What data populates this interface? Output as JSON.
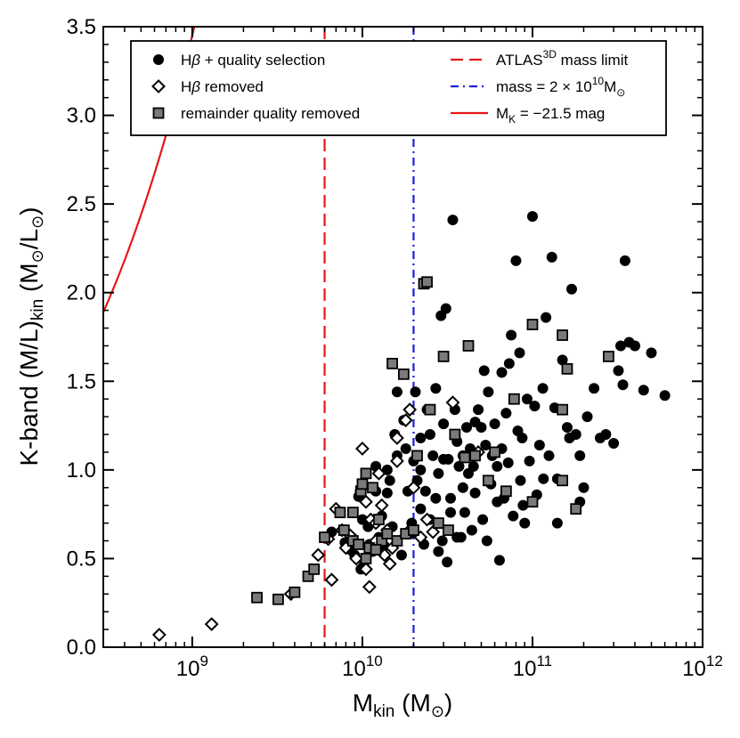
{
  "chart_data": {
    "type": "scatter",
    "xlabel": {
      "main": "M",
      "sub": "kin",
      "rest": " (M",
      "sun": "⊙",
      "close": ")"
    },
    "ylabel": {
      "main": "K-band (M/L)",
      "sub": "kin",
      "rest": " (M",
      "sun1": "⊙",
      "slash": "/L",
      "sun2": "⊙",
      "close": ")"
    },
    "x_scale": "log",
    "xlim": [
      300000000,
      1000000000000
    ],
    "ylim": [
      0.0,
      3.5
    ],
    "x_ticks": [
      {
        "value": 1000000000,
        "base": "10",
        "exp": "9"
      },
      {
        "value": 10000000000,
        "base": "10",
        "exp": "10"
      },
      {
        "value": 100000000000,
        "base": "10",
        "exp": "11"
      },
      {
        "value": 1000000000000,
        "base": "10",
        "exp": "12"
      }
    ],
    "y_ticks": [
      "0.0",
      "0.5",
      "1.0",
      "1.5",
      "2.0",
      "2.5",
      "3.0",
      "3.5"
    ],
    "grid": false,
    "legend": {
      "position": "top",
      "markers": [
        {
          "pre": "H",
          "greek": "β",
          "post": " + quality selection",
          "marker": "filled-circle"
        },
        {
          "pre": "H",
          "greek": "β",
          "post": " removed",
          "marker": "open-diamond"
        },
        {
          "pre": "remainder quality removed",
          "greek": "",
          "post": "",
          "marker": "gray-square"
        }
      ],
      "lines": [
        {
          "pre": "ATLAS",
          "sup": "3D",
          "post": " mass limit",
          "style": "red-dashed"
        },
        {
          "pre": "mass = 2 × 10",
          "sup": "10",
          "post": "M",
          "sun": "⊙",
          "style": "blue-dashdot"
        },
        {
          "pre": "M",
          "sub": "K",
          "post": " = −21.5 mag",
          "style": "red-solid"
        }
      ]
    },
    "reference_lines": [
      {
        "orientation": "vertical",
        "x": 6000000000,
        "color": "#e8161a",
        "dash": "dashed"
      },
      {
        "orientation": "vertical",
        "x": 20000000000,
        "color": "#1d1ddc",
        "dash": "dashdot"
      }
    ],
    "curve": {
      "name": "M_K = -21.5 mag",
      "relation": "y = 0.0001091 * x^0.5",
      "x_from": 300000000,
      "x_to": 31600000000,
      "color": "#e8161a"
    },
    "series": [
      {
        "name": "Hβ + quality selection",
        "marker": "filled-circle",
        "color": "#000000",
        "points": [
          [
            6600000000.0,
            0.65
          ],
          [
            7900000000.0,
            0.59
          ],
          [
            8500000000.0,
            0.55
          ],
          [
            9000000000.0,
            0.52
          ],
          [
            9500000000.0,
            0.85
          ],
          [
            9700000000.0,
            0.88
          ],
          [
            9800000000.0,
            0.44
          ],
          [
            10000000000.0,
            0.72
          ],
          [
            10200000000.0,
            0.46
          ],
          [
            10800000000.0,
            0.68
          ],
          [
            11000000000.0,
            0.58
          ],
          [
            11500000000.0,
            0.54
          ],
          [
            12000000000.0,
            0.88
          ],
          [
            12500000000.0,
            0.62
          ],
          [
            13000000000.0,
            0.74
          ],
          [
            13500000000.0,
            0.57
          ],
          [
            14000000000.0,
            0.87
          ],
          [
            14500000000.0,
            0.94
          ],
          [
            15000000000.0,
            0.68
          ],
          [
            15500000000.0,
            1.2
          ],
          [
            16000000000.0,
            1.44
          ],
          [
            17000000000.0,
            0.52
          ],
          [
            17500000000.0,
            1.28
          ],
          [
            18000000000.0,
            1.12
          ],
          [
            18500000000.0,
            0.88
          ],
          [
            19000000000.0,
            0.64
          ],
          [
            19500000000.0,
            0.7
          ],
          [
            20000000000.0,
            1.05
          ],
          [
            20500000000.0,
            1.44
          ],
          [
            21000000000.0,
            0.94
          ],
          [
            22000000000.0,
            1.18
          ],
          [
            23000000000.0,
            0.58
          ],
          [
            23500000000.0,
            0.88
          ],
          [
            24000000000.0,
            1.34
          ],
          [
            25000000000.0,
            0.72
          ],
          [
            26000000000.0,
            1.08
          ],
          [
            27000000000.0,
            1.46
          ],
          [
            28000000000.0,
            0.98
          ],
          [
            29000000000.0,
            1.87
          ],
          [
            29500000000.0,
            0.6
          ],
          [
            30000000000.0,
            1.26
          ],
          [
            31000000000.0,
            1.91
          ],
          [
            31500000000.0,
            0.48
          ],
          [
            32000000000.0,
            1.06
          ],
          [
            33000000000.0,
            0.84
          ],
          [
            34000000000.0,
            2.41
          ],
          [
            35000000000.0,
            1.34
          ],
          [
            36000000000.0,
            0.62
          ],
          [
            37000000000.0,
            1.02
          ],
          [
            38000000000.0,
            0.62
          ],
          [
            39000000000.0,
            1.08
          ],
          [
            40000000000.0,
            0.76
          ],
          [
            41000000000.0,
            1.24
          ],
          [
            42000000000.0,
            0.98
          ],
          [
            43000000000.0,
            1.12
          ],
          [
            45000000000.0,
            1.02
          ],
          [
            46000000000.0,
            0.87
          ],
          [
            48000000000.0,
            1.34
          ],
          [
            50000000000.0,
            1.24
          ],
          [
            51000000000.0,
            0.72
          ],
          [
            53000000000.0,
            1.14
          ],
          [
            55000000000.0,
            1.44
          ],
          [
            57000000000.0,
            0.92
          ],
          [
            60000000000.0,
            1.26
          ],
          [
            62000000000.0,
            1.02
          ],
          [
            64000000000.0,
            0.49
          ],
          [
            66000000000.0,
            1.12
          ],
          [
            68000000000.0,
            0.84
          ],
          [
            70000000000.0,
            1.32
          ],
          [
            72000000000.0,
            1.04
          ],
          [
            75000000000.0,
            1.76
          ],
          [
            77000000000.0,
            0.74
          ],
          [
            80000000000.0,
            2.18
          ],
          [
            82000000000.0,
            1.22
          ],
          [
            85000000000.0,
            0.94
          ],
          [
            87000000000.0,
            1.18
          ],
          [
            90000000000.0,
            0.7
          ],
          [
            93000000000.0,
            1.4
          ],
          [
            96000000000.0,
            1.05
          ],
          [
            100000000000.0,
            2.43
          ],
          [
            103000000000.0,
            1.36
          ],
          [
            106000000000.0,
            0.86
          ],
          [
            110000000000.0,
            1.14
          ],
          [
            115000000000.0,
            1.46
          ],
          [
            120000000000.0,
            1.86
          ],
          [
            125000000000.0,
            1.08
          ],
          [
            130000000000.0,
            2.2
          ],
          [
            135000000000.0,
            1.35
          ],
          [
            140000000000.0,
            0.7
          ],
          [
            150000000000.0,
            1.62
          ],
          [
            160000000000.0,
            1.24
          ],
          [
            170000000000.0,
            2.02
          ],
          [
            180000000000.0,
            1.2
          ],
          [
            190000000000.0,
            1.08
          ],
          [
            200000000000.0,
            0.9
          ],
          [
            210000000000.0,
            1.3
          ],
          [
            230000000000.0,
            1.46
          ],
          [
            250000000000.0,
            1.18
          ],
          [
            270000000000.0,
            1.2
          ],
          [
            300000000000.0,
            1.15
          ],
          [
            320000000000.0,
            1.56
          ],
          [
            330000000000.0,
            1.7
          ],
          [
            340000000000.0,
            1.48
          ],
          [
            350000000000.0,
            2.18
          ],
          [
            370000000000.0,
            1.72
          ],
          [
            400000000000.0,
            1.7
          ],
          [
            450000000000.0,
            1.45
          ],
          [
            500000000000.0,
            1.66
          ],
          [
            600000000000.0,
            1.42
          ],
          [
            190000000000.0,
            0.82
          ],
          [
            14000000000.0,
            1.0
          ],
          [
            16000000000.0,
            1.08
          ],
          [
            22000000000.0,
            1.0
          ],
          [
            27000000000.0,
            0.84
          ],
          [
            33000000000.0,
            0.76
          ],
          [
            44000000000.0,
            0.66
          ],
          [
            54000000000.0,
            0.6
          ],
          [
            62000000000.0,
            0.82
          ],
          [
            88000000000.0,
            0.8
          ],
          [
            116000000000.0,
            0.95
          ],
          [
            140000000000.0,
            0.95
          ],
          [
            28000000000.0,
            0.54
          ],
          [
            22000000000.0,
            0.78
          ],
          [
            12000000000.0,
            1.02
          ],
          [
            30000000000.0,
            1.06
          ],
          [
            36000000000.0,
            1.16
          ],
          [
            46000000000.0,
            1.27
          ],
          [
            39000000000.0,
            0.9
          ],
          [
            58000000000.0,
            1.08
          ],
          [
            73000000000.0,
            1.6
          ],
          [
            84000000000.0,
            1.66
          ],
          [
            66000000000.0,
            1.55
          ],
          [
            52000000000.0,
            1.56
          ],
          [
            165000000000.0,
            1.18
          ],
          [
            25000000000.0,
            1.2
          ]
        ]
      },
      {
        "name": "Hβ removed",
        "marker": "open-diamond",
        "color": "#000000",
        "points": [
          [
            640000000.0,
            0.07
          ],
          [
            1300000000.0,
            0.13
          ],
          [
            3800000000.0,
            0.3
          ],
          [
            5500000000.0,
            0.52
          ],
          [
            6300000000.0,
            0.61
          ],
          [
            6600000000.0,
            0.38
          ],
          [
            7000000000.0,
            0.78
          ],
          [
            7600000000.0,
            0.66
          ],
          [
            8000000000.0,
            0.56
          ],
          [
            8500000000.0,
            0.63
          ],
          [
            9200000000.0,
            0.5
          ],
          [
            10000000000.0,
            1.12
          ],
          [
            10500000000.0,
            0.82
          ],
          [
            11000000000.0,
            0.34
          ],
          [
            11200000000.0,
            0.72
          ],
          [
            12000000000.0,
            0.6
          ],
          [
            12500000000.0,
            0.98
          ],
          [
            13000000000.0,
            0.8
          ],
          [
            13500000000.0,
            0.52
          ],
          [
            14000000000.0,
            0.66
          ],
          [
            14500000000.0,
            0.47
          ],
          [
            15000000000.0,
            0.56
          ],
          [
            16000000000.0,
            1.18
          ],
          [
            18000000000.0,
            1.28
          ],
          [
            19000000000.0,
            0.66
          ],
          [
            20000000000.0,
            0.9
          ],
          [
            22000000000.0,
            0.62
          ],
          [
            24000000000.0,
            0.72
          ],
          [
            26000000000.0,
            0.65
          ],
          [
            34000000000.0,
            1.38
          ],
          [
            48000000000.0,
            1.1
          ],
          [
            10500000000.0,
            0.44
          ],
          [
            12000000000.0,
            0.7
          ],
          [
            16000000000.0,
            1.05
          ],
          [
            19000000000.0,
            1.34
          ]
        ]
      },
      {
        "name": "remainder quality removed",
        "marker": "gray-square",
        "color": "#7a7a7a",
        "points": [
          [
            2400000000.0,
            0.28
          ],
          [
            3200000000.0,
            0.27
          ],
          [
            4000000000.0,
            0.31
          ],
          [
            4800000000.0,
            0.4
          ],
          [
            5200000000.0,
            0.44
          ],
          [
            7800000000.0,
            0.66
          ],
          [
            8800000000.0,
            0.6
          ],
          [
            9500000000.0,
            0.58
          ],
          [
            9800000000.0,
            0.88
          ],
          [
            10000000000.0,
            0.92
          ],
          [
            10500000000.0,
            0.5
          ],
          [
            11500000000.0,
            0.9
          ],
          [
            12500000000.0,
            0.72
          ],
          [
            13000000000.0,
            0.6
          ],
          [
            14000000000.0,
            0.64
          ],
          [
            15000000000.0,
            1.6
          ],
          [
            16000000000.0,
            0.6
          ],
          [
            17500000000.0,
            1.54
          ],
          [
            18000000000.0,
            0.64
          ],
          [
            20000000000.0,
            0.66
          ],
          [
            21000000000.0,
            1.08
          ],
          [
            23000000000.0,
            2.05
          ],
          [
            25000000000.0,
            1.34
          ],
          [
            28000000000.0,
            0.7
          ],
          [
            30000000000.0,
            1.64
          ],
          [
            35000000000.0,
            1.2
          ],
          [
            40000000000.0,
            1.07
          ],
          [
            42000000000.0,
            1.7
          ],
          [
            55000000000.0,
            0.94
          ],
          [
            60000000000.0,
            1.1
          ],
          [
            78000000000.0,
            1.4
          ],
          [
            100000000000.0,
            1.82
          ],
          [
            150000000000.0,
            1.76
          ],
          [
            150000000000.0,
            1.34
          ],
          [
            160000000000.0,
            1.57
          ],
          [
            280000000000.0,
            1.64
          ],
          [
            10500000000.0,
            0.98
          ],
          [
            11000000000.0,
            0.56
          ],
          [
            12000000000.0,
            0.55
          ],
          [
            24000000000.0,
            2.06
          ],
          [
            70000000000.0,
            0.88
          ],
          [
            100000000000.0,
            0.82
          ],
          [
            150000000000.0,
            0.94
          ],
          [
            180000000000.0,
            0.78
          ],
          [
            46000000000.0,
            1.08
          ],
          [
            32000000000.0,
            0.66
          ],
          [
            8800000000.0,
            0.76
          ],
          [
            7400000000.0,
            0.76
          ],
          [
            6000000000.0,
            0.62
          ]
        ]
      }
    ]
  }
}
